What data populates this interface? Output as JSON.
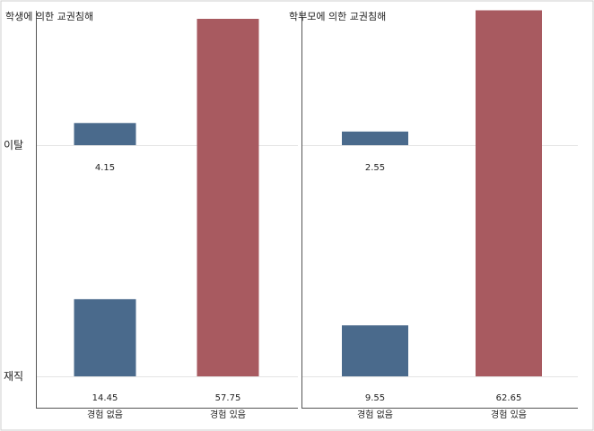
{
  "chart_data": {
    "type": "bar",
    "layout": "two panels side by side, each split into two rows",
    "grid": false,
    "legend": "none",
    "rows": [
      "이탈",
      "재직"
    ],
    "categories": [
      "경험 없음",
      "경험 있음"
    ],
    "category_colors": [
      "#4a6a8c",
      "#a85a60"
    ],
    "value_range": [
      0,
      66
    ],
    "panels": [
      {
        "title": "학생에 의한 교권침해",
        "rows": [
          {
            "row": "이탈",
            "values": [
              4.15,
              23.65
            ]
          },
          {
            "row": "재직",
            "values": [
              14.45,
              57.75
            ]
          }
        ]
      },
      {
        "title": "학부모에 의한 교권침해",
        "rows": [
          {
            "row": "이탈",
            "values": [
              2.55,
              25.25
            ]
          },
          {
            "row": "재직",
            "values": [
              9.55,
              62.65
            ]
          }
        ]
      }
    ]
  }
}
